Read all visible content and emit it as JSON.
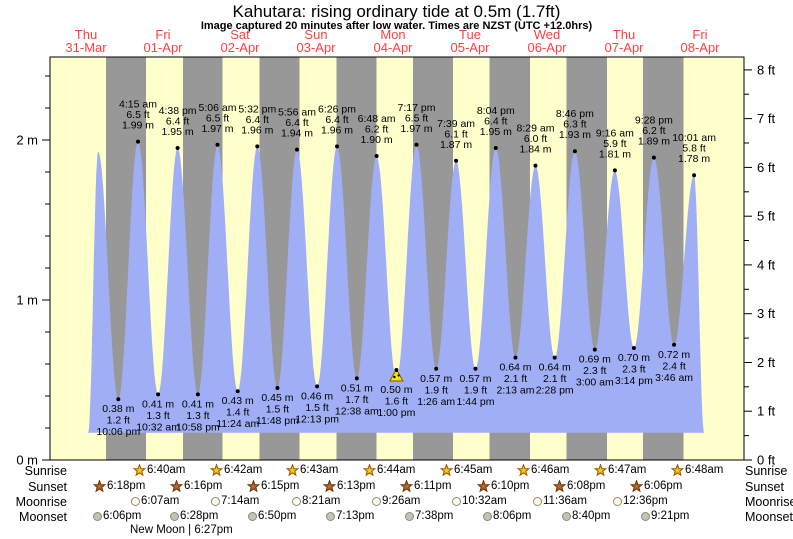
{
  "title": "Kahutara: rising  ordinary tide at 0.5m (1.7ft)",
  "subtitle": "Image captured 20 minutes after low water. Times are NZST (UTC +12.0hrs)",
  "colors": {
    "day_band": "#FFFFCC",
    "night_band": "#989898",
    "tide_fill": "#A0AFF5",
    "date_label": "#FF4040",
    "marker_fill": "#FFE000",
    "marker_edge": "#7A5C00",
    "sunrise_star": "#E3CF17",
    "sunrise_star_edge": "#A05000",
    "sunset_star": "#B5682A",
    "sunset_star_edge": "#6B3000",
    "moonrise_fill": "#FFFFDD",
    "moonset_fill": "#C4C4B0",
    "moon_edge": "#888888"
  },
  "days": [
    {
      "dow": "Thu",
      "date": "31-Mar"
    },
    {
      "dow": "Fri",
      "date": "01-Apr"
    },
    {
      "dow": "Sat",
      "date": "02-Apr"
    },
    {
      "dow": "Sun",
      "date": "03-Apr"
    },
    {
      "dow": "Mon",
      "date": "04-Apr"
    },
    {
      "dow": "Tue",
      "date": "05-Apr"
    },
    {
      "dow": "Wed",
      "date": "06-Apr"
    },
    {
      "dow": "Thu",
      "date": "07-Apr"
    },
    {
      "dow": "Fri",
      "date": "08-Apr"
    }
  ],
  "y_axis": {
    "left_unit": "m",
    "left_labels": [
      "0 m",
      "1 m",
      "2 m"
    ],
    "right_unit": "ft",
    "right_labels": [
      "0 ft",
      "1 ft",
      "2 ft",
      "3 ft",
      "4 ft",
      "5 ft",
      "6 ft",
      "7 ft",
      "8 ft"
    ]
  },
  "chart_data": {
    "type": "area",
    "x_unit": "time",
    "ylim_m": [
      0,
      2.52
    ],
    "ylim_ft": [
      0,
      8.27
    ],
    "baseline_m": 0.17,
    "curve_edges": {
      "start": {
        "day": 0,
        "time": "12:40 pm"
      },
      "end": {
        "day": 8,
        "time": "1:10 pm"
      }
    },
    "tides": [
      {
        "day": 0,
        "time": "3:47 pm",
        "type": "high",
        "height_m": 1.93
      },
      {
        "day": 0,
        "time": "10:06 pm",
        "type": "low",
        "height_m": 0.38,
        "height_ft": 1.2,
        "lines": [
          "0.38 m",
          "1.2 ft",
          "10:06 pm"
        ]
      },
      {
        "day": 1,
        "time": "4:15 am",
        "type": "high",
        "height_m": 1.99,
        "height_ft": 6.5,
        "lines": [
          "4:15 am",
          "6.5 ft",
          "1.99 m"
        ]
      },
      {
        "day": 1,
        "time": "10:32 am",
        "type": "low",
        "height_m": 0.41,
        "height_ft": 1.3,
        "lines": [
          "0.41 m",
          "1.3 ft",
          "10:32 am"
        ]
      },
      {
        "day": 1,
        "time": "4:38 pm",
        "type": "high",
        "height_m": 1.95,
        "height_ft": 6.4,
        "lines": [
          "4:38 pm",
          "6.4 ft",
          "1.95 m"
        ]
      },
      {
        "day": 1,
        "time": "10:58 pm",
        "type": "low",
        "height_m": 0.41,
        "height_ft": 1.3,
        "lines": [
          "0.41 m",
          "1.3 ft",
          "10:58 pm"
        ]
      },
      {
        "day": 2,
        "time": "5:06 am",
        "type": "high",
        "height_m": 1.97,
        "height_ft": 6.5,
        "lines": [
          "5:06 am",
          "6.5 ft",
          "1.97 m"
        ]
      },
      {
        "day": 2,
        "time": "11:24 am",
        "type": "low",
        "height_m": 0.43,
        "height_ft": 1.4,
        "lines": [
          "0.43 m",
          "1.4 ft",
          "11:24 am"
        ]
      },
      {
        "day": 2,
        "time": "5:32 pm",
        "type": "high",
        "height_m": 1.96,
        "height_ft": 6.4,
        "lines": [
          "5:32 pm",
          "6.4 ft",
          "1.96 m"
        ]
      },
      {
        "day": 2,
        "time": "11:48 pm",
        "type": "low",
        "height_m": 0.45,
        "height_ft": 1.5,
        "lines": [
          "0.45 m",
          "1.5 ft",
          "11:48 pm"
        ]
      },
      {
        "day": 3,
        "time": "5:56 am",
        "type": "high",
        "height_m": 1.94,
        "height_ft": 6.4,
        "lines": [
          "5:56 am",
          "6.4 ft",
          "1.94 m"
        ]
      },
      {
        "day": 3,
        "time": "12:13 pm",
        "type": "low",
        "height_m": 0.46,
        "height_ft": 1.5,
        "lines": [
          "0.46 m",
          "1.5 ft",
          "12:13 pm"
        ]
      },
      {
        "day": 3,
        "time": "6:26 pm",
        "type": "high",
        "height_m": 1.96,
        "height_ft": 6.4,
        "lines": [
          "6:26 pm",
          "6.4 ft",
          "1.96 m"
        ]
      },
      {
        "day": 4,
        "time": "12:38 am",
        "type": "low",
        "height_m": 0.51,
        "height_ft": 1.7,
        "lines": [
          "0.51 m",
          "1.7 ft",
          "12:38 am"
        ]
      },
      {
        "day": 4,
        "time": "6:48 am",
        "type": "high",
        "height_m": 1.9,
        "height_ft": 6.2,
        "lines": [
          "6:48 am",
          "6.2 ft",
          "1.90 m"
        ]
      },
      {
        "day": 4,
        "time": "1:00 pm",
        "type": "low",
        "height_m": 0.5,
        "height_ft": 1.6,
        "lines": [
          "0.50 m",
          "1.6 ft",
          "1:00 pm"
        ],
        "marker": true
      },
      {
        "day": 4,
        "time": "7:17 pm",
        "type": "high",
        "height_m": 1.97,
        "height_ft": 6.5,
        "lines": [
          "7:17 pm",
          "6.5 ft",
          "1.97 m"
        ]
      },
      {
        "day": 5,
        "time": "1:26 am",
        "type": "low",
        "height_m": 0.57,
        "height_ft": 1.9,
        "lines": [
          "0.57 m",
          "1.9 ft",
          "1:26 am"
        ]
      },
      {
        "day": 5,
        "time": "7:39 am",
        "type": "high",
        "height_m": 1.87,
        "height_ft": 6.1,
        "lines": [
          "7:39 am",
          "6.1 ft",
          "1.87 m"
        ]
      },
      {
        "day": 5,
        "time": "1:44 pm",
        "type": "low",
        "height_m": 0.57,
        "height_ft": 1.9,
        "lines": [
          "0.57 m",
          "1.9 ft",
          "1:44 pm"
        ]
      },
      {
        "day": 5,
        "time": "8:04 pm",
        "type": "high",
        "height_m": 1.95,
        "height_ft": 6.4,
        "lines": [
          "8:04 pm",
          "6.4 ft",
          "1.95 m"
        ]
      },
      {
        "day": 6,
        "time": "2:13 am",
        "type": "low",
        "height_m": 0.64,
        "height_ft": 2.1,
        "lines": [
          "0.64 m",
          "2.1 ft",
          "2:13 am"
        ]
      },
      {
        "day": 6,
        "time": "8:29 am",
        "type": "high",
        "height_m": 1.84,
        "height_ft": 6.0,
        "lines": [
          "8:29 am",
          "6.0 ft",
          "1.84 m"
        ]
      },
      {
        "day": 6,
        "time": "2:28 pm",
        "type": "low",
        "height_m": 0.64,
        "height_ft": 2.1,
        "lines": [
          "0.64 m",
          "2.1 ft",
          "2:28 pm"
        ]
      },
      {
        "day": 6,
        "time": "8:46 pm",
        "type": "high",
        "height_m": 1.93,
        "height_ft": 6.3,
        "lines": [
          "8:46 pm",
          "6.3 ft",
          "1.93 m"
        ]
      },
      {
        "day": 7,
        "time": "3:00 am",
        "type": "low",
        "height_m": 0.69,
        "height_ft": 2.3,
        "lines": [
          "0.69 m",
          "2.3 ft",
          "3:00 am"
        ]
      },
      {
        "day": 7,
        "time": "9:16 am",
        "type": "high",
        "height_m": 1.81,
        "height_ft": 5.9,
        "lines": [
          "9:16 am",
          "5.9 ft",
          "1.81 m"
        ]
      },
      {
        "day": 7,
        "time": "3:14 pm",
        "type": "low",
        "height_m": 0.7,
        "height_ft": 2.3,
        "lines": [
          "0.70 m",
          "2.3 ft",
          "3:14 pm"
        ]
      },
      {
        "day": 7,
        "time": "9:28 pm",
        "type": "high",
        "height_m": 1.89,
        "height_ft": 6.2,
        "lines": [
          "9:28 pm",
          "6.2 ft",
          "1.89 m"
        ]
      },
      {
        "day": 8,
        "time": "3:46 am",
        "type": "low",
        "height_m": 0.72,
        "height_ft": 2.4,
        "lines": [
          "0.72 m",
          "2.4 ft",
          "3:46 am"
        ]
      },
      {
        "day": 8,
        "time": "10:01 am",
        "type": "high",
        "height_m": 1.78,
        "height_ft": 5.8,
        "lines": [
          "10:01 am",
          "5.8 ft",
          "1.78 m"
        ]
      }
    ]
  },
  "footer": {
    "row_labels": [
      "Sunrise",
      "Sunset",
      "Moonrise",
      "Moonset"
    ],
    "sunrise": [
      {
        "day": 1,
        "time": "6:40am"
      },
      {
        "day": 2,
        "time": "6:42am"
      },
      {
        "day": 3,
        "time": "6:43am"
      },
      {
        "day": 4,
        "time": "6:44am"
      },
      {
        "day": 5,
        "time": "6:45am"
      },
      {
        "day": 6,
        "time": "6:46am"
      },
      {
        "day": 7,
        "time": "6:47am"
      },
      {
        "day": 8,
        "time": "6:48am"
      }
    ],
    "sunset": [
      {
        "day": 0,
        "time": "6:18pm"
      },
      {
        "day": 1,
        "time": "6:16pm"
      },
      {
        "day": 2,
        "time": "6:15pm"
      },
      {
        "day": 3,
        "time": "6:13pm"
      },
      {
        "day": 4,
        "time": "6:11pm"
      },
      {
        "day": 5,
        "time": "6:10pm"
      },
      {
        "day": 6,
        "time": "6:08pm"
      },
      {
        "day": 7,
        "time": "6:06pm"
      }
    ],
    "moonrise": [
      {
        "day": 1,
        "time": "6:07am"
      },
      {
        "day": 2,
        "time": "7:14am"
      },
      {
        "day": 3,
        "time": "8:21am"
      },
      {
        "day": 4,
        "time": "9:26am"
      },
      {
        "day": 5,
        "time": "10:32am"
      },
      {
        "day": 6,
        "time": "11:36am"
      },
      {
        "day": 7,
        "time": "12:36pm"
      }
    ],
    "moonset": [
      {
        "day": 0,
        "time": "6:06pm"
      },
      {
        "day": 1,
        "time": "6:28pm"
      },
      {
        "day": 2,
        "time": "6:50pm"
      },
      {
        "day": 3,
        "time": "7:13pm"
      },
      {
        "day": 4,
        "time": "7:38pm"
      },
      {
        "day": 5,
        "time": "8:06pm"
      },
      {
        "day": 6,
        "time": "8:40pm"
      },
      {
        "day": 7,
        "time": "9:21pm"
      }
    ],
    "new_moon": "New Moon | 6:27pm"
  }
}
